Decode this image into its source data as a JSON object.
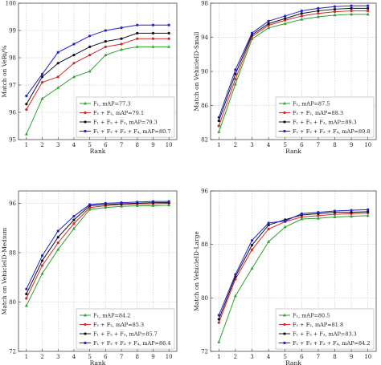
{
  "chart_data": [
    {
      "type": "line",
      "xlabel": "Rank",
      "ylabel": "Match on VeRi/%",
      "x": [
        1,
        2,
        3,
        4,
        5,
        6,
        7,
        8,
        9,
        10
      ],
      "xticklabels": [
        "1",
        "2",
        "3",
        "4",
        "5",
        "6",
        "7",
        "8",
        "9",
        "10"
      ],
      "ylim": [
        95,
        100
      ],
      "yticks": [
        95,
        96,
        97,
        98,
        99,
        100
      ],
      "grid": true,
      "legend": "bottom-right",
      "series": [
        {
          "name": "F₁, mAP=77.3",
          "color": "#2ca02c",
          "marker": "triangle",
          "values": [
            95.2,
            96.5,
            96.9,
            97.3,
            97.5,
            98.1,
            98.3,
            98.4,
            98.4,
            98.4
          ]
        },
        {
          "name": "F₁ + F₂, mAP=79.1",
          "color": "#d62728",
          "marker": "circle",
          "values": [
            96.1,
            97.1,
            97.3,
            97.8,
            98.1,
            98.4,
            98.5,
            98.7,
            98.7,
            98.7
          ]
        },
        {
          "name": "F₁ + F₂ + F₃, mAP=79.3",
          "color": "#111111",
          "marker": "circle",
          "values": [
            96.3,
            97.3,
            97.8,
            98.1,
            98.4,
            98.6,
            98.7,
            98.9,
            98.9,
            98.9
          ]
        },
        {
          "name": "F₁ + F₂ + F₃ + F₄, mAP=80.7",
          "color": "#1f1fd6",
          "marker": "circle",
          "values": [
            96.6,
            97.4,
            98.2,
            98.5,
            98.8,
            99.0,
            99.1,
            99.2,
            99.2,
            99.2
          ]
        }
      ]
    },
    {
      "type": "line",
      "xlabel": "Rank",
      "ylabel": "Match on VehicleID-Small",
      "x": [
        1,
        2,
        3,
        4,
        5,
        6,
        7,
        8,
        9,
        10
      ],
      "xticklabels": [
        "1",
        "2",
        "3",
        "4",
        "5",
        "6",
        "7",
        "8",
        "9",
        "10"
      ],
      "ylim": [
        82,
        98
      ],
      "yticks": [
        82,
        86,
        90,
        94,
        98
      ],
      "grid": true,
      "legend": "bottom-right",
      "series": [
        {
          "name": "F₁, mAP=87.5",
          "color": "#2ca02c",
          "marker": "triangle",
          "values": [
            82.9,
            88.5,
            93.8,
            95.1,
            95.6,
            96.1,
            96.4,
            96.6,
            96.7,
            96.7
          ]
        },
        {
          "name": "F₁ + F₂, mAP=88.3",
          "color": "#d62728",
          "marker": "circle",
          "values": [
            83.6,
            89.1,
            94.1,
            95.4,
            96.0,
            96.5,
            96.8,
            97.0,
            97.1,
            97.1
          ]
        },
        {
          "name": "F₁ + F₂ + F₃, mAP=89.3",
          "color": "#111111",
          "marker": "circle",
          "values": [
            84.2,
            89.7,
            94.3,
            95.6,
            96.2,
            96.8,
            97.1,
            97.3,
            97.4,
            97.4
          ]
        },
        {
          "name": "F₁ + F₂ + F₃ + F₄, mAP=89.8",
          "color": "#1f1fd6",
          "marker": "circle",
          "values": [
            84.6,
            90.2,
            94.5,
            95.9,
            96.5,
            97.1,
            97.4,
            97.6,
            97.7,
            97.7
          ]
        }
      ]
    },
    {
      "type": "line",
      "xlabel": "Rank",
      "ylabel": "Match on VehicleID-Medium",
      "x": [
        1,
        2,
        3,
        4,
        5,
        6,
        7,
        8,
        9,
        10
      ],
      "xticklabels": [
        "1",
        "2",
        "3",
        "4",
        "5",
        "6",
        "7",
        "8",
        "9",
        "10"
      ],
      "ylim": [
        72,
        98
      ],
      "yticks": [
        72,
        80,
        88,
        96
      ],
      "grid": true,
      "legend": "bottom-right",
      "series": [
        {
          "name": "F₁, mAP=84.2",
          "color": "#2ca02c",
          "marker": "triangle",
          "values": [
            79.4,
            84.6,
            88.5,
            91.9,
            95.0,
            95.3,
            95.5,
            95.6,
            95.6,
            95.7
          ]
        },
        {
          "name": "F₁ + F₂, mAP=85.3",
          "color": "#d62728",
          "marker": "circle",
          "values": [
            80.6,
            85.9,
            89.6,
            92.7,
            95.3,
            95.6,
            95.8,
            95.9,
            95.9,
            96.0
          ]
        },
        {
          "name": "F₁ + F₂ + F₃, mAP=85.7",
          "color": "#111111",
          "marker": "circle",
          "values": [
            81.3,
            86.7,
            90.5,
            93.3,
            95.6,
            95.8,
            95.9,
            96.0,
            96.1,
            96.1
          ]
        },
        {
          "name": "F₁ + F₂ + F₃ + F₄, mAP=86.4",
          "color": "#1f1fd6",
          "marker": "circle",
          "values": [
            82.1,
            87.5,
            91.5,
            93.9,
            95.8,
            96.0,
            96.1,
            96.2,
            96.3,
            96.3
          ]
        }
      ]
    },
    {
      "type": "line",
      "xlabel": "Rank",
      "ylabel": "Match on VehicleID-Large",
      "x": [
        1,
        2,
        3,
        4,
        5,
        6,
        7,
        8,
        9,
        10
      ],
      "xticklabels": [
        "1",
        "2",
        "3",
        "4",
        "5",
        "6",
        "7",
        "8",
        "9",
        "10"
      ],
      "ylim": [
        72,
        96
      ],
      "yticks": [
        72,
        80,
        88,
        96
      ],
      "grid": true,
      "legend": "bottom-right",
      "series": [
        {
          "name": "F₁, mAP=80.5",
          "color": "#2ca02c",
          "marker": "triangle",
          "values": [
            73.4,
            80.3,
            84.4,
            88.4,
            90.6,
            91.8,
            91.9,
            92.1,
            92.2,
            92.3
          ]
        },
        {
          "name": "F₁ + F₂, mAP=81.8",
          "color": "#d62728",
          "marker": "circle",
          "values": [
            76.3,
            82.8,
            87.2,
            90.3,
            91.4,
            92.1,
            92.3,
            92.5,
            92.6,
            92.7
          ]
        },
        {
          "name": "F₁ + F₂ + F₃, mAP=83.3",
          "color": "#111111",
          "marker": "circle",
          "values": [
            76.8,
            83.2,
            87.9,
            90.9,
            91.7,
            92.4,
            92.6,
            92.8,
            92.8,
            92.9
          ]
        },
        {
          "name": "F₁ + F₂ + F₃ + F₄, mAP=84.2",
          "color": "#1f1fd6",
          "marker": "circle",
          "values": [
            77.4,
            83.5,
            88.6,
            91.2,
            91.5,
            92.6,
            92.8,
            93.0,
            93.1,
            93.2
          ]
        }
      ]
    }
  ]
}
